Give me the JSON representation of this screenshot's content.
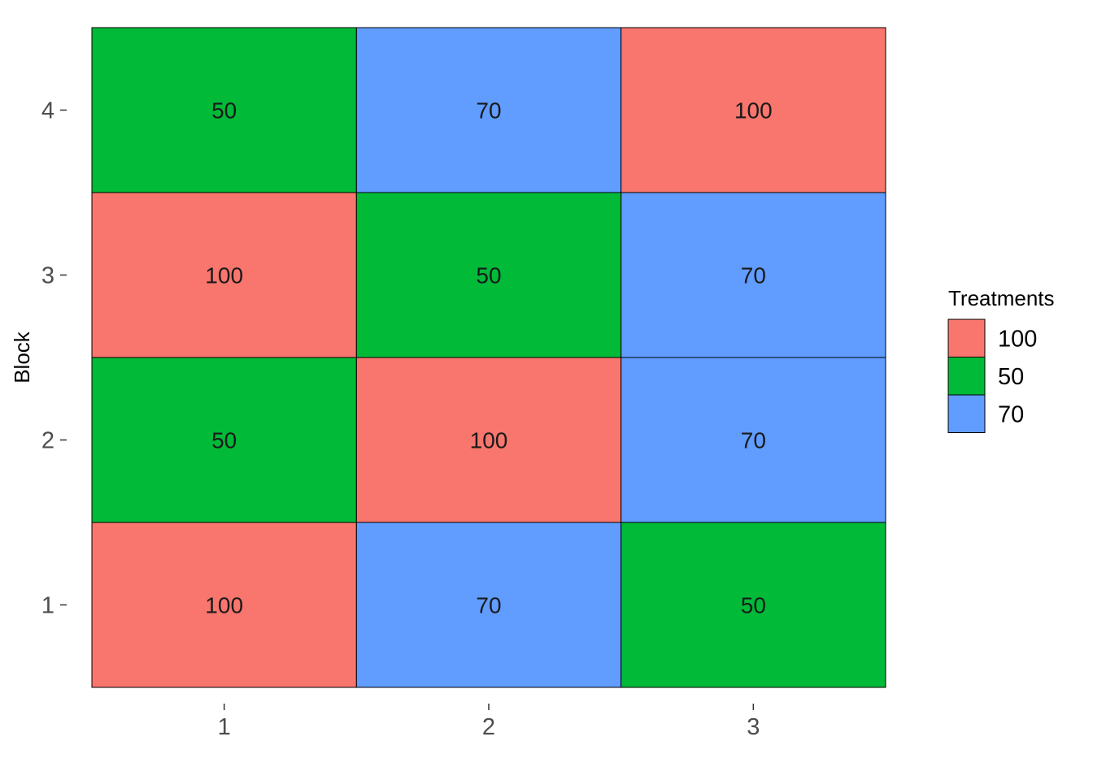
{
  "chart_data": {
    "type": "heatmap",
    "title": "",
    "xlabel": "",
    "ylabel": "Block",
    "x_categories": [
      "1",
      "2",
      "3"
    ],
    "y_categories": [
      "1",
      "2",
      "3",
      "4"
    ],
    "cells": [
      {
        "x": "1",
        "y": "1",
        "value": "100"
      },
      {
        "x": "2",
        "y": "1",
        "value": "70"
      },
      {
        "x": "3",
        "y": "1",
        "value": "50"
      },
      {
        "x": "1",
        "y": "2",
        "value": "50"
      },
      {
        "x": "2",
        "y": "2",
        "value": "100"
      },
      {
        "x": "3",
        "y": "2",
        "value": "70"
      },
      {
        "x": "1",
        "y": "3",
        "value": "100"
      },
      {
        "x": "2",
        "y": "3",
        "value": "50"
      },
      {
        "x": "3",
        "y": "3",
        "value": "70"
      },
      {
        "x": "1",
        "y": "4",
        "value": "50"
      },
      {
        "x": "2",
        "y": "4",
        "value": "70"
      },
      {
        "x": "3",
        "y": "4",
        "value": "100"
      }
    ],
    "legend": {
      "title": "Treatments",
      "placement": "right",
      "entries": [
        {
          "label": "100",
          "color": "#F8766D"
        },
        {
          "label": "50",
          "color": "#00BA38"
        },
        {
          "label": "70",
          "color": "#619CFF"
        }
      ]
    },
    "grid": false
  }
}
